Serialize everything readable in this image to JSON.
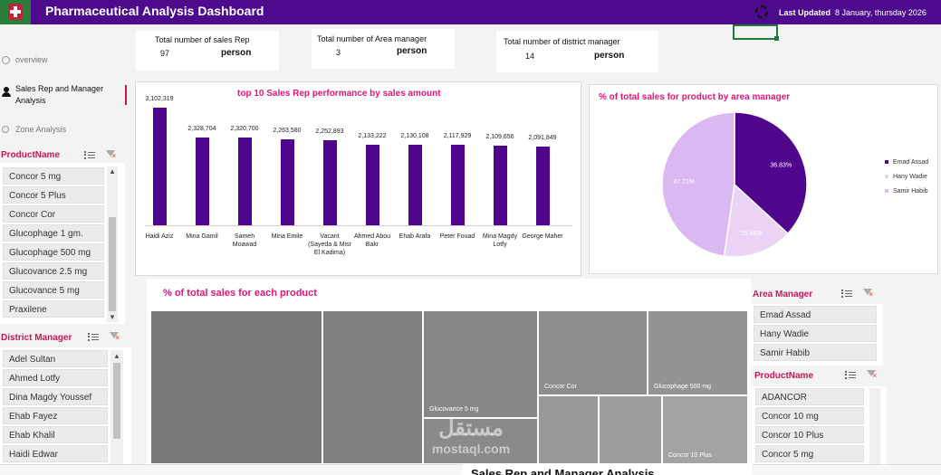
{
  "header": {
    "title": "Pharmaceutical Analysis Dashboard",
    "last_updated_label": "Last Updated",
    "last_updated_value": "8 January, thursday 2026",
    "colors": {
      "bar": "#4d0a8c",
      "accent": "#e0157a"
    }
  },
  "nav": {
    "items": [
      {
        "label": "overview",
        "icon": "clock-icon"
      },
      {
        "label": "Sales Rep and Manager Analysis",
        "icon": "person-icon",
        "active": true
      },
      {
        "label": "Zone Analysis",
        "icon": "globe-icon"
      }
    ]
  },
  "kpis": [
    {
      "label": "Total number of sales Rep",
      "value": "97",
      "unit": "person"
    },
    {
      "label": "Total number of Area manager",
      "value": "3",
      "unit": "person"
    },
    {
      "label": "Total number of district manager",
      "value": "14",
      "unit": "person"
    }
  ],
  "slicers": {
    "product_left": {
      "title": "ProductName",
      "items": [
        "Concor 5 mg",
        "Concor 5 Plus",
        "Concor Cor",
        "Glucophage 1 gm.",
        "Glucophage 500 mg",
        "Glucovance 2.5 mg",
        "Glucovance 5 mg",
        "Praxilene"
      ]
    },
    "district_manager": {
      "title": "District Manager",
      "items": [
        "Adel Sultan",
        "Ahmed Lotfy",
        "Dina Magdy Youssef",
        "Ehab Fayez",
        "Ehab Khalil",
        "Haidi Edwar"
      ]
    },
    "area_manager": {
      "title": "Area Manager",
      "items": [
        "Emad Assad",
        "Hany Wadie",
        "Samir Habib"
      ]
    },
    "product_right": {
      "title": "ProductName",
      "items": [
        "ADANCOR",
        "Concor 10 mg",
        "Concor 10 Plus",
        "Concor 5 mg"
      ]
    }
  },
  "chart_data": [
    {
      "type": "bar",
      "title": "top 10  Sales Rep performance by sales amount",
      "categories": [
        "Haidi Aziz",
        "Mina Gamil",
        "Sameh Moawad",
        "Mina Emile",
        "Vacant (Sayeda & Misr El Kadima)",
        "Ahmed Abou Bakr",
        "Ehab Arafa",
        "Peter Fouad",
        "Mina Magdy Lotfy",
        "George Maher"
      ],
      "values": [
        3102319,
        2328704,
        2320700,
        2263580,
        2252893,
        2133222,
        2130108,
        2117929,
        2109656,
        2091849
      ],
      "value_labels": [
        "3,102,319",
        "2,328,704",
        "2,320,700",
        "2,263,580",
        "2,252,893",
        "2,133,222",
        "2,130,108",
        "2,117,929",
        "2,109,656",
        "2,091,849"
      ],
      "ylim": [
        0,
        3300000
      ],
      "color": "#4f068c"
    },
    {
      "type": "pie",
      "title": "% of total sales for product by area manager",
      "labels": [
        "Emad Assad",
        "Hany Wadie",
        "Samir Habib"
      ],
      "values": [
        36.83,
        15.46,
        47.71
      ],
      "value_labels": [
        "36.83%",
        "15.46%",
        "47.71%"
      ],
      "colors": [
        "#4f068c",
        "#ead3f5",
        "#dcb8f3"
      ],
      "legend": "right"
    },
    {
      "type": "treemap",
      "title": "% of total sales for each product",
      "labels": [
        "",
        "",
        "Glucovance 5 mg",
        "Concor Cor",
        "Glucophage 500 mg",
        "",
        "",
        "Concor 10 Plus"
      ],
      "colors": [
        "#7a7a7a",
        "#808080",
        "#878787",
        "#8d8d8d",
        "#939393",
        "#989898",
        "#9d9d9d",
        "#a3a3a3"
      ]
    }
  ],
  "watermark": {
    "logo": "مستقل",
    "text": "mostaql.com"
  },
  "bottom_tab": "Sales Rep and Manager Analysis"
}
